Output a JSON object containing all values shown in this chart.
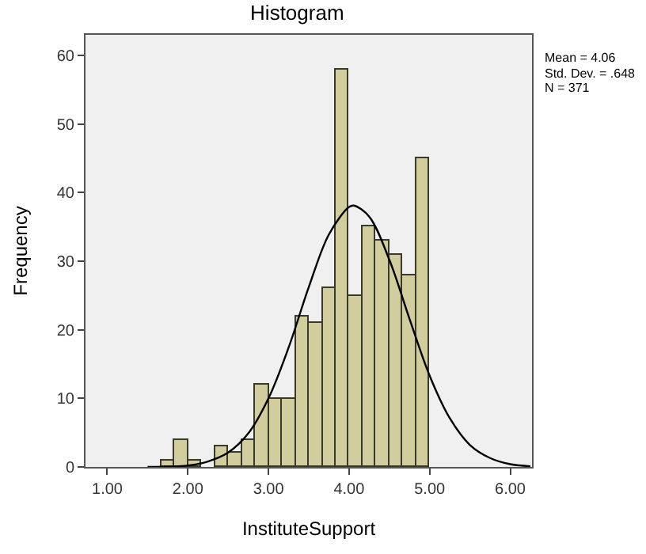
{
  "chart_data": {
    "type": "histogram",
    "title": "Histogram",
    "xlabel": "InstituteSupport",
    "ylabel": "Frequency",
    "bins": [
      1.667,
      1.833,
      2.0,
      2.167,
      2.333,
      2.5,
      2.667,
      2.833,
      3.0,
      3.167,
      3.333,
      3.5,
      3.667,
      3.833,
      4.0,
      4.167,
      4.333,
      4.5,
      4.667,
      4.833,
      5.0
    ],
    "values": [
      1,
      4,
      1,
      0,
      3,
      2,
      4,
      12,
      10,
      10,
      22,
      21,
      26,
      58,
      25,
      35,
      33,
      31,
      28,
      45
    ],
    "color": "#d2cd9c",
    "series": [
      {
        "type": "line",
        "color": "#000000",
        "x": [
          1.5,
          2.0,
          2.25,
          2.5,
          2.75,
          3.0,
          3.25,
          3.5,
          3.75,
          4.0,
          4.06,
          4.25,
          4.5,
          4.75,
          5.0,
          5.25,
          5.5,
          5.75,
          6.0,
          6.25
        ],
        "values": [
          0.0,
          0.2,
          0.8,
          2.1,
          4.9,
          10.0,
          17.4,
          26.2,
          33.9,
          37.9,
          38.1,
          36.5,
          30.2,
          21.6,
          13.3,
          7.1,
          3.2,
          1.3,
          0.4,
          0.1
        ]
      }
    ],
    "xlim": [
      0.73,
      6.27
    ],
    "xticks": [
      {
        "value": 1,
        "label": "1.00"
      },
      {
        "value": 2,
        "label": "2.00"
      },
      {
        "value": 3,
        "label": "3.00"
      },
      {
        "value": 4,
        "label": "4.00"
      },
      {
        "value": 5,
        "label": "5.00"
      },
      {
        "value": 6,
        "label": "6.00"
      }
    ],
    "ylim": [
      0,
      63
    ],
    "yticks": [
      0,
      10,
      20,
      30,
      40,
      50,
      60
    ],
    "annotations": [
      "Mean = 4.06",
      "Std. Dev. = .648",
      "N = 371"
    ],
    "grid": false
  }
}
